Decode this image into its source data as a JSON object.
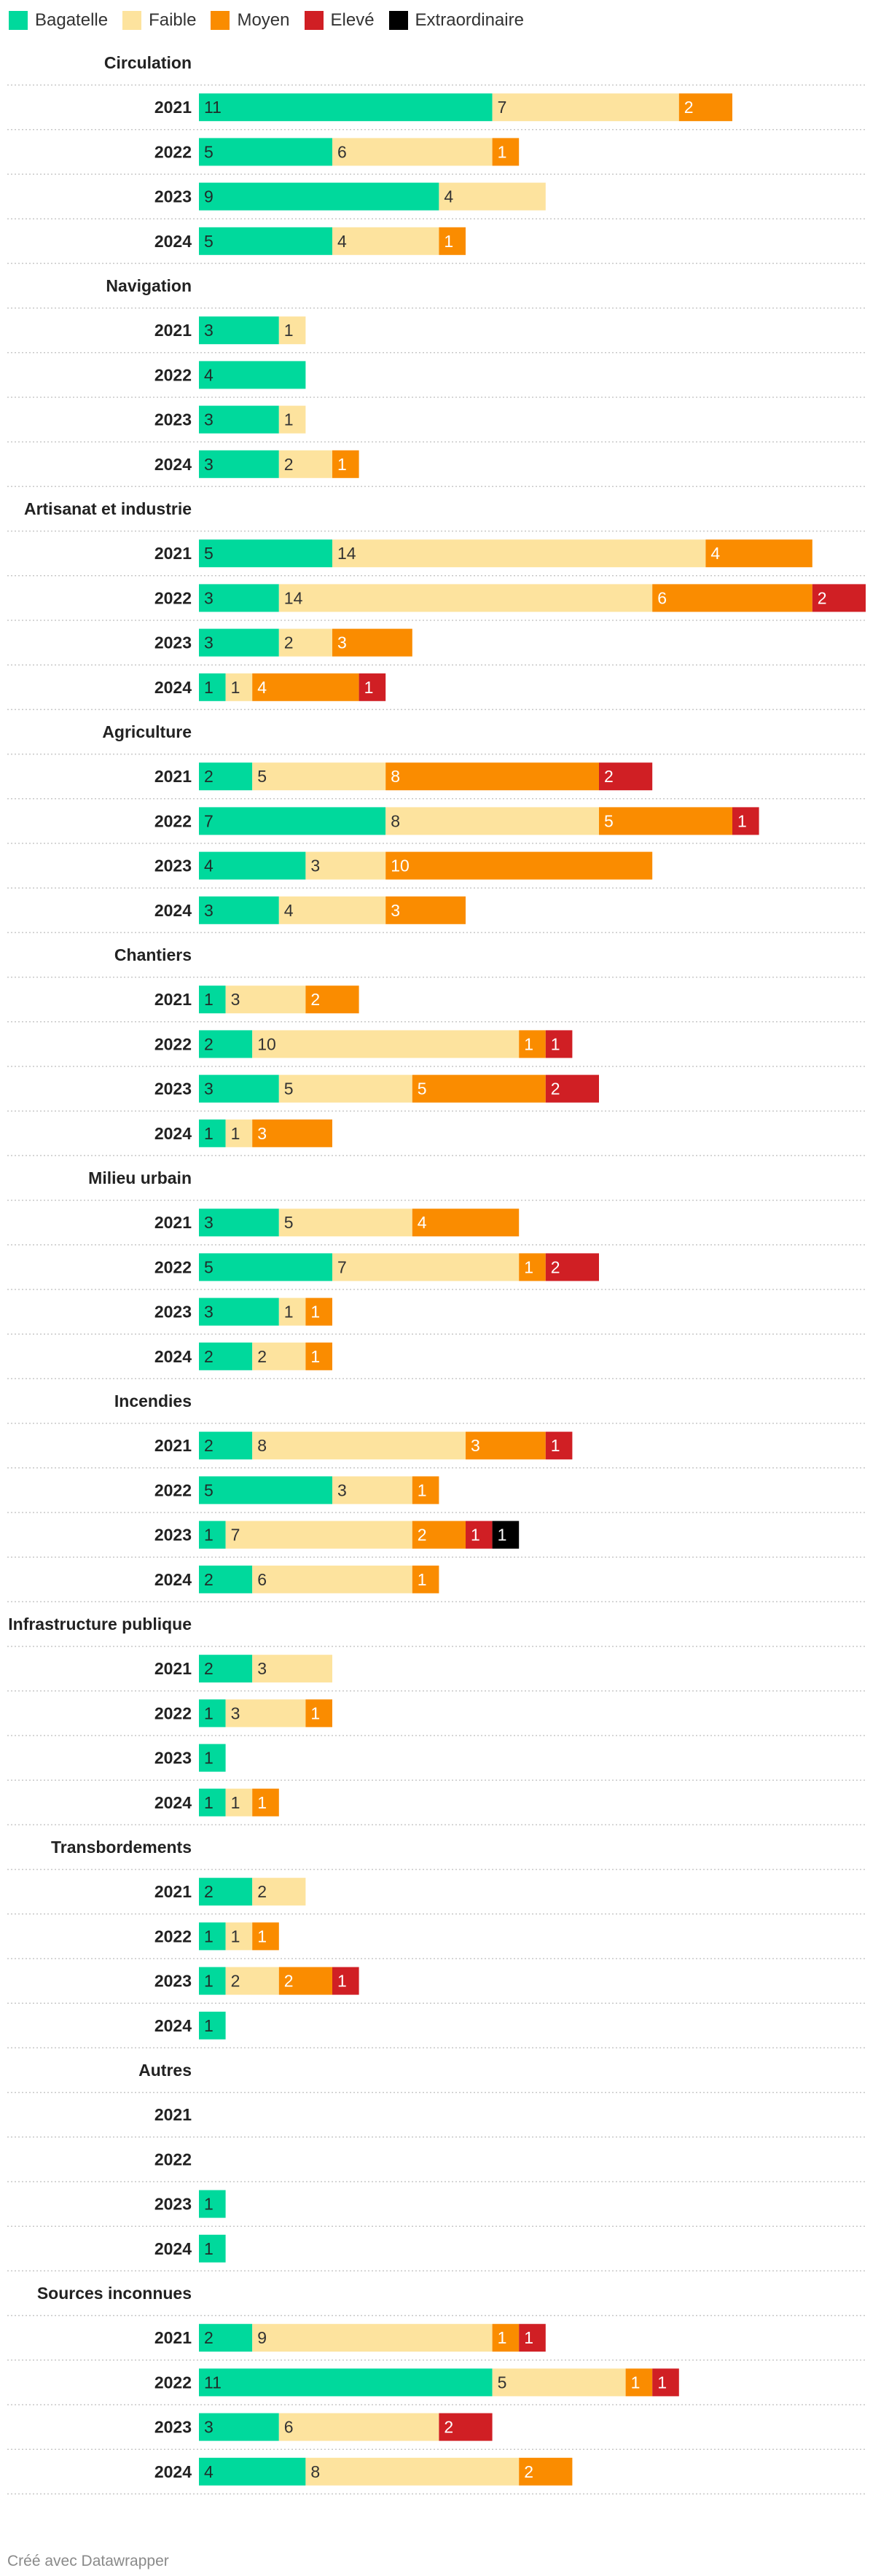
{
  "colors": {
    "Bagatelle": "#00d99c",
    "Faible": "#fde39e",
    "Moyen": "#fa8c00",
    "Elevé": "#d01f24",
    "Extraordinaire": "#000000"
  },
  "footer": "Créé avec Datawrapper",
  "chart_data": {
    "type": "bar",
    "orientation": "horizontal",
    "stacked": true,
    "legend_position": "top-left",
    "legend": [
      "Bagatelle",
      "Faible",
      "Moyen",
      "Elevé",
      "Extraordinaire"
    ],
    "groups": [
      {
        "name": "Circulation",
        "rows": [
          {
            "year": "2021",
            "values": [
              11,
              7,
              2,
              0,
              0
            ]
          },
          {
            "year": "2022",
            "values": [
              5,
              6,
              1,
              0,
              0
            ]
          },
          {
            "year": "2023",
            "values": [
              9,
              4,
              0,
              0,
              0
            ]
          },
          {
            "year": "2024",
            "values": [
              5,
              4,
              1,
              0,
              0
            ]
          }
        ]
      },
      {
        "name": "Navigation",
        "rows": [
          {
            "year": "2021",
            "values": [
              3,
              1,
              0,
              0,
              0
            ]
          },
          {
            "year": "2022",
            "values": [
              4,
              0,
              0,
              0,
              0
            ]
          },
          {
            "year": "2023",
            "values": [
              3,
              1,
              0,
              0,
              0
            ]
          },
          {
            "year": "2024",
            "values": [
              3,
              2,
              1,
              0,
              0
            ]
          }
        ]
      },
      {
        "name": "Artisanat et industrie",
        "rows": [
          {
            "year": "2021",
            "values": [
              5,
              14,
              4,
              0,
              0
            ]
          },
          {
            "year": "2022",
            "values": [
              3,
              14,
              6,
              2,
              0
            ]
          },
          {
            "year": "2023",
            "values": [
              3,
              2,
              3,
              0,
              0
            ]
          },
          {
            "year": "2024",
            "values": [
              1,
              1,
              4,
              1,
              0
            ]
          }
        ]
      },
      {
        "name": "Agriculture",
        "rows": [
          {
            "year": "2021",
            "values": [
              2,
              5,
              8,
              2,
              0
            ]
          },
          {
            "year": "2022",
            "values": [
              7,
              8,
              5,
              1,
              0
            ]
          },
          {
            "year": "2023",
            "values": [
              4,
              3,
              10,
              0,
              0
            ]
          },
          {
            "year": "2024",
            "values": [
              3,
              4,
              3,
              0,
              0
            ]
          }
        ]
      },
      {
        "name": "Chantiers",
        "rows": [
          {
            "year": "2021",
            "values": [
              1,
              3,
              2,
              0,
              0
            ]
          },
          {
            "year": "2022",
            "values": [
              2,
              10,
              1,
              1,
              0
            ]
          },
          {
            "year": "2023",
            "values": [
              3,
              5,
              5,
              2,
              0
            ]
          },
          {
            "year": "2024",
            "values": [
              1,
              1,
              3,
              0,
              0
            ]
          }
        ]
      },
      {
        "name": "Milieu urbain",
        "rows": [
          {
            "year": "2021",
            "values": [
              3,
              5,
              4,
              0,
              0
            ]
          },
          {
            "year": "2022",
            "values": [
              5,
              7,
              1,
              2,
              0
            ]
          },
          {
            "year": "2023",
            "values": [
              3,
              1,
              1,
              0,
              0
            ]
          },
          {
            "year": "2024",
            "values": [
              2,
              2,
              1,
              0,
              0
            ]
          }
        ]
      },
      {
        "name": "Incendies",
        "rows": [
          {
            "year": "2021",
            "values": [
              2,
              8,
              3,
              1,
              0
            ]
          },
          {
            "year": "2022",
            "values": [
              5,
              3,
              1,
              0,
              0
            ]
          },
          {
            "year": "2023",
            "values": [
              1,
              7,
              2,
              1,
              1
            ]
          },
          {
            "year": "2024",
            "values": [
              2,
              6,
              1,
              0,
              0
            ]
          }
        ]
      },
      {
        "name": "Infrastructure publique",
        "rows": [
          {
            "year": "2021",
            "values": [
              2,
              3,
              0,
              0,
              0
            ]
          },
          {
            "year": "2022",
            "values": [
              1,
              3,
              1,
              0,
              0
            ]
          },
          {
            "year": "2023",
            "values": [
              1,
              0,
              0,
              0,
              0
            ]
          },
          {
            "year": "2024",
            "values": [
              1,
              1,
              1,
              0,
              0
            ]
          }
        ]
      },
      {
        "name": "Transbordements",
        "rows": [
          {
            "year": "2021",
            "values": [
              2,
              2,
              0,
              0,
              0
            ]
          },
          {
            "year": "2022",
            "values": [
              1,
              1,
              1,
              0,
              0
            ]
          },
          {
            "year": "2023",
            "values": [
              1,
              2,
              2,
              1,
              0
            ]
          },
          {
            "year": "2024",
            "values": [
              1,
              0,
              0,
              0,
              0
            ]
          }
        ]
      },
      {
        "name": "Autres",
        "rows": [
          {
            "year": "2021",
            "values": [
              0,
              0,
              0,
              0,
              0
            ]
          },
          {
            "year": "2022",
            "values": [
              0,
              0,
              0,
              0,
              0
            ]
          },
          {
            "year": "2023",
            "values": [
              1,
              0,
              0,
              0,
              0
            ]
          },
          {
            "year": "2024",
            "values": [
              1,
              0,
              0,
              0,
              0
            ]
          }
        ]
      },
      {
        "name": "Sources inconnues",
        "rows": [
          {
            "year": "2021",
            "values": [
              2,
              9,
              1,
              1,
              0
            ]
          },
          {
            "year": "2022",
            "values": [
              11,
              5,
              1,
              1,
              0
            ]
          },
          {
            "year": "2023",
            "values": [
              3,
              6,
              0,
              2,
              0
            ]
          },
          {
            "year": "2024",
            "values": [
              4,
              8,
              2,
              0,
              0
            ]
          }
        ]
      }
    ]
  }
}
